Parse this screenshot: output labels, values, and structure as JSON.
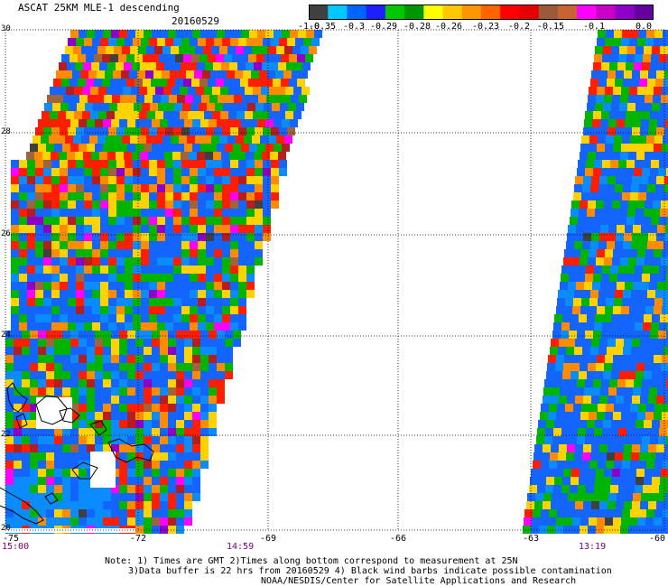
{
  "header": {
    "title": "ASCAT 25KM MLE-1 descending",
    "date": "20160529"
  },
  "colorbar": {
    "colors": [
      "#404040",
      "#00c8ff",
      "#0064ff",
      "#1e1eff",
      "#00c800",
      "#009600",
      "#ffff00",
      "#ffc800",
      "#ff9600",
      "#ff6400",
      "#ff0000",
      "#e60000",
      "#9b5a3c",
      "#c86432",
      "#ff00ff",
      "#c800c8",
      "#8c00c8",
      "#6400a0"
    ],
    "labels": [
      "-1.0",
      "-0.35",
      "-0.3",
      "-0.29",
      "-0.28",
      "-0.26",
      "-0.23",
      "-0.2",
      "-0.15",
      "-0.1",
      "0.0"
    ]
  },
  "axes": {
    "lat_labels": [
      "30",
      "28",
      "26",
      "24",
      "22",
      "20"
    ],
    "lon_labels": [
      "-75",
      "-72",
      "-69",
      "-66",
      "-63",
      "-60"
    ]
  },
  "times": {
    "left": "15:00",
    "middle": "14:59",
    "right": "13:19"
  },
  "notes": {
    "line1": "Note: 1) Times are GMT 2)Times along bottom correspond to measurement at 25N",
    "line2": "3)Data buffer is 22 hrs from 20160529 4) Black wind barbs indicate possible contamination",
    "line3": "NOAA/NESDIS/Center for Satellite Applications and Research"
  },
  "palette": {
    "blue": "#1464ff",
    "lightblue": "#0a8cff",
    "green": "#00b400",
    "yellow": "#ffd200",
    "orange": "#ff8c00",
    "red": "#ff1e00",
    "darkred": "#b41e1e",
    "brown": "#a0643c",
    "magenta": "#ff00ff",
    "purple": "#8c00c8",
    "grey": "#404040"
  }
}
